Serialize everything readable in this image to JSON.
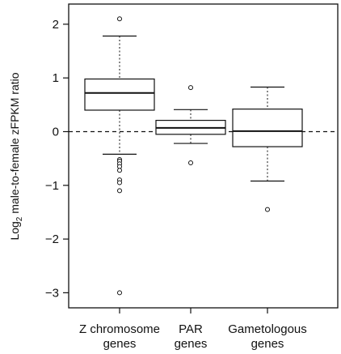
{
  "chart_data": {
    "type": "box",
    "ylabel": {
      "prefix": "Log",
      "subscript": "2",
      "suffix": " male-to-female zFPKM ratio"
    },
    "ylim": [
      -3.2,
      2.3
    ],
    "yticks": [
      -3,
      -2,
      -1,
      0,
      1,
      2
    ],
    "reference_line": {
      "y": 0,
      "style": "dashed"
    },
    "grid": false,
    "legend": "none",
    "categories": [
      {
        "lines": [
          "Z chromosome",
          "genes"
        ]
      },
      {
        "lines": [
          "PAR",
          "genes"
        ]
      },
      {
        "lines": [
          "Gametologous",
          "genes"
        ]
      }
    ],
    "boxes": [
      {
        "category": "Z chromosome genes",
        "whisker_low": -0.42,
        "q1": 0.4,
        "median": 0.72,
        "q3": 0.98,
        "whisker_high": 1.78,
        "outliers": [
          2.1,
          -0.52,
          -0.55,
          -0.6,
          -0.65,
          -0.72,
          -0.9,
          -0.95,
          -1.1,
          -3.0
        ]
      },
      {
        "category": "PAR genes",
        "whisker_low": -0.22,
        "q1": -0.05,
        "median": 0.07,
        "q3": 0.21,
        "whisker_high": 0.41,
        "outliers": [
          0.82,
          -0.58
        ]
      },
      {
        "category": "Gametologous genes",
        "whisker_low": -0.92,
        "q1": -0.28,
        "median": 0.01,
        "q3": 0.42,
        "whisker_high": 0.83,
        "outliers": [
          -1.45
        ]
      }
    ]
  }
}
